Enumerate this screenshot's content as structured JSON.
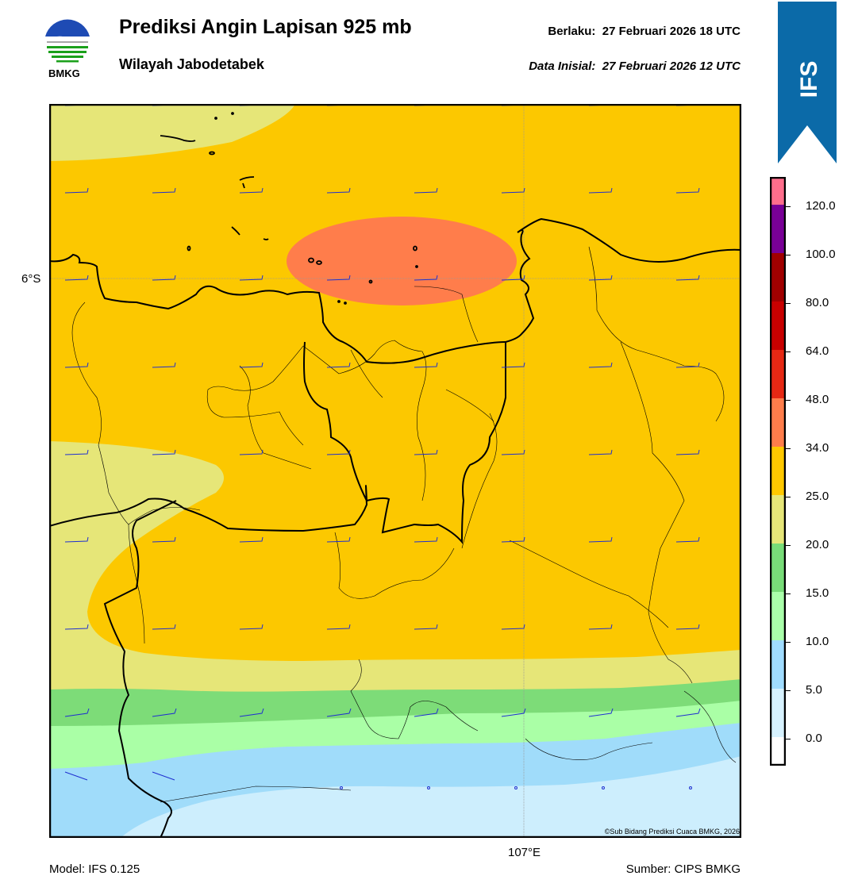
{
  "header": {
    "title": "Prediksi Angin Lapisan 925 mb",
    "subtitle": "Wilayah Jabodetabek",
    "valid_label": "Berlaku:",
    "valid_value": "27 Februari 2026 18 UTC",
    "init_label": "Data Inisial:",
    "init_value": "27 Februari 2026 12 UTC"
  },
  "logo": {
    "text": "BMKG"
  },
  "model_tag": {
    "text": "IFS",
    "color": "#0b6aa8"
  },
  "axes": {
    "lat_label": "6°S",
    "lon_label": "107°E"
  },
  "credit": "©Sub Bidang Prediksi Cuaca BMKG, 2026",
  "footer": {
    "model": "Model: IFS 0.125",
    "source": "Sumber: CIPS BMKG"
  },
  "colorbar": {
    "colors": [
      "#ffffff",
      "#d7f2ff",
      "#a0dcff",
      "#aaffaa",
      "#78dc78",
      "#e6e678",
      "#ffc800",
      "#ff7d4b",
      "#e62814",
      "#c80000",
      "#a00000",
      "#780096",
      "#ff6e8c"
    ],
    "ticks": [
      "0.0",
      "5.0",
      "10.0",
      "15.0",
      "20.0",
      "25.0",
      "34.0",
      "48.0",
      "64.0",
      "80.0",
      "100.0",
      "120.0"
    ]
  },
  "map": {
    "zone_colors": {
      "lightblue": "#cdeefd",
      "blue": "#a0dcfa",
      "lightgreen": "#aaffa6",
      "green": "#7ddc78",
      "khaki": "#e6e678",
      "orange": "#fcc800",
      "salmon": "#ff7d4b"
    }
  }
}
